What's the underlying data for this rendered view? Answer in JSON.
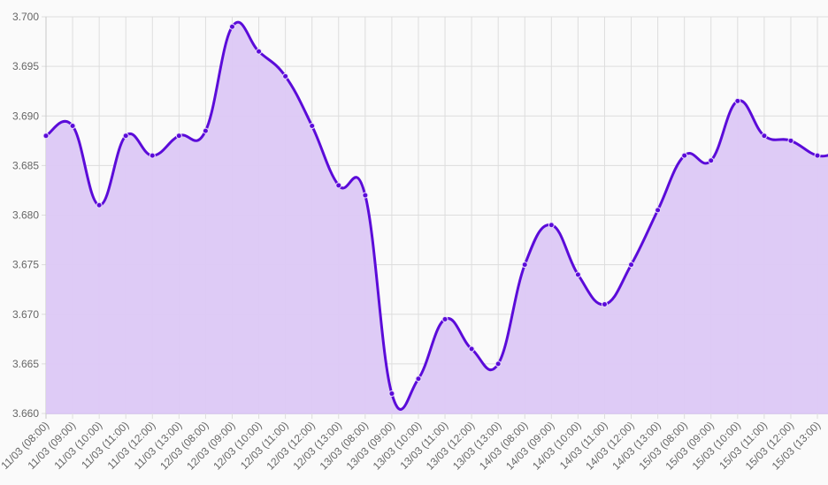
{
  "chart_data": {
    "type": "line",
    "title": "",
    "xlabel": "",
    "ylabel": "",
    "ylim": [
      3.66,
      3.7
    ],
    "yticks": [
      "3.700",
      "3.695",
      "3.690",
      "3.685",
      "3.680",
      "3.675",
      "3.670",
      "3.665",
      "3.660"
    ],
    "grid": true,
    "legend": null,
    "categories": [
      "11/03 (08:00)",
      "11/03 (09:00)",
      "11/03 (10:00)",
      "11/03 (11:00)",
      "11/03 (12:00)",
      "11/03 (13:00)",
      "12/03 (08:00)",
      "12/03 (09:00)",
      "12/03 (10:00)",
      "12/03 (11:00)",
      "12/03 (12:00)",
      "12/03 (13:00)",
      "13/03 (08:00)",
      "13/03 (09:00)",
      "13/03 (10:00)",
      "13/03 (11:00)",
      "13/03 (12:00)",
      "13/03 (13:00)",
      "14/03 (08:00)",
      "14/03 (09:00)",
      "14/03 (10:00)",
      "14/03 (11:00)",
      "14/03 (12:00)",
      "14/03 (13:00)",
      "15/03 (08:00)",
      "15/03 (09:00)",
      "15/03 (10:00)",
      "15/03 (11:00)",
      "15/03 (12:00)",
      "15/03 (13:00)"
    ],
    "series": [
      {
        "name": "",
        "color": "#5b0bd9",
        "fill": "#dcc8f6",
        "values": [
          3.688,
          3.689,
          3.681,
          3.688,
          3.686,
          3.688,
          3.6885,
          3.699,
          3.6965,
          3.694,
          3.689,
          3.683,
          3.682,
          3.662,
          3.6635,
          3.6695,
          3.6665,
          3.665,
          3.675,
          3.679,
          3.674,
          3.671,
          3.675,
          3.6805,
          3.686,
          3.6855,
          3.6915,
          3.688,
          3.6875,
          3.686
        ]
      }
    ]
  },
  "colors": {
    "background": "#fafafa",
    "grid": "#dddddd",
    "axis_text": "#666666"
  }
}
